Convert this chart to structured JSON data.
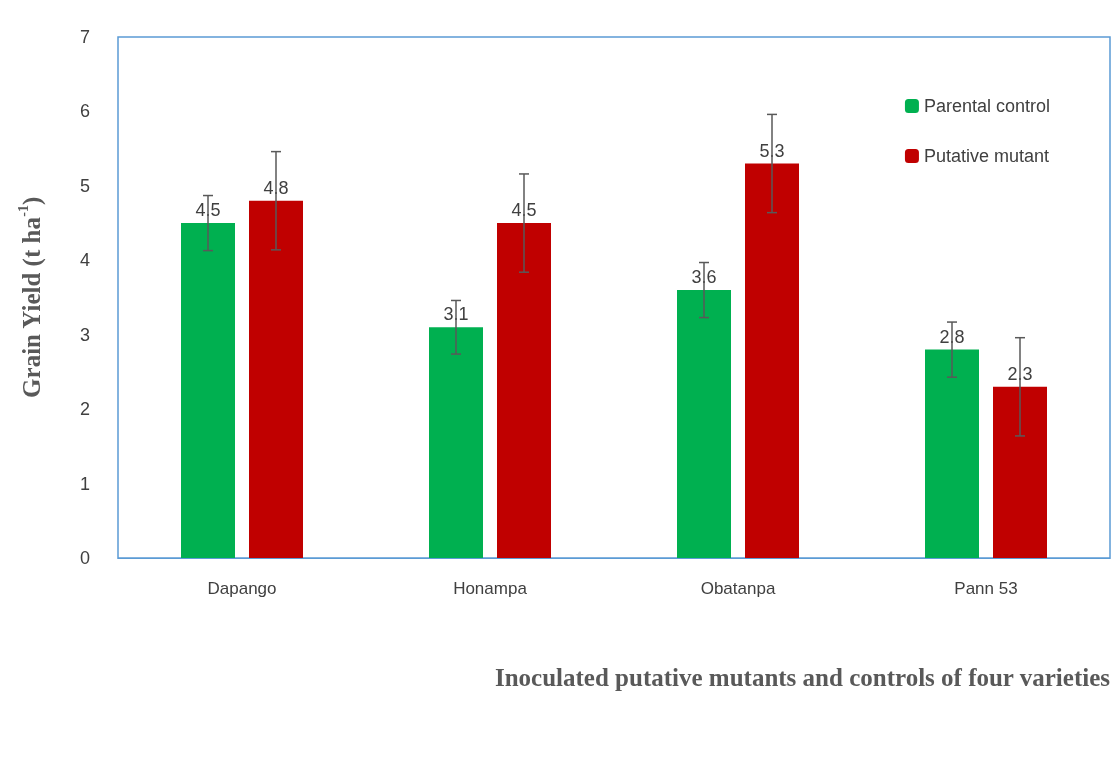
{
  "chart_data": {
    "type": "bar",
    "xlabel": "Inoculated putative mutants and controls of four varieties",
    "ylabel": "Grain Yield (t ha$^{-1}$)",
    "categories": [
      "Dapango",
      "Honampa",
      "Obatanpa",
      "Pann 53"
    ],
    "series": [
      {
        "name": "Parental control",
        "color": "#00b050",
        "values": [
          4.5,
          3.1,
          3.6,
          2.8
        ],
        "errors": [
          0.37,
          0.36,
          0.37,
          0.37
        ]
      },
      {
        "name": "Putative mutant",
        "color": "#c00000",
        "values": [
          4.8,
          4.5,
          5.3,
          2.3
        ],
        "errors": [
          0.66,
          0.66,
          0.66,
          0.66
        ]
      }
    ],
    "ylim": [
      0,
      7
    ],
    "yticks": [
      0,
      1,
      2,
      3,
      4,
      5,
      6,
      7
    ],
    "grid": false,
    "legend": "top right",
    "data_labels": true
  }
}
